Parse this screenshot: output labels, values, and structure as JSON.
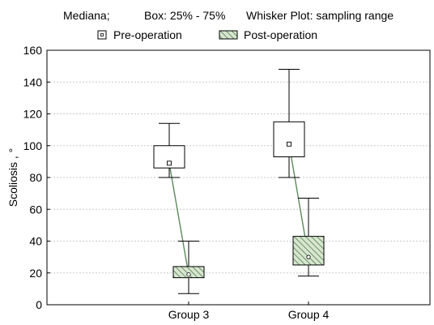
{
  "header": {
    "mediana_label": "Mediana;",
    "box_label": "Box: 25% - 75%",
    "whisker_label": "Whisker Plot: sampling range"
  },
  "chart_data": {
    "type": "boxplot",
    "ylabel": "Scoliosis , °",
    "ylim": [
      0,
      160
    ],
    "yticks": [
      0,
      20,
      40,
      60,
      80,
      100,
      120,
      140,
      160
    ],
    "grid": true,
    "legend_position": "top",
    "categories": [
      "Group 3",
      "Group 4"
    ],
    "series": [
      {
        "name": "Pre-operation",
        "fill": "#ffffff",
        "hatched": false,
        "boxes": [
          {
            "category": "Group 3",
            "min": 80,
            "q1": 86,
            "median": 89,
            "q3": 100,
            "max": 114
          },
          {
            "category": "Group 4",
            "min": 80,
            "q1": 93,
            "median": 101,
            "q3": 115,
            "max": 148
          }
        ]
      },
      {
        "name": "Post-operation",
        "fill": "#d8e6d0",
        "hatched": true,
        "boxes": [
          {
            "category": "Group 3",
            "min": 7,
            "q1": 17,
            "median": 19,
            "q3": 24,
            "max": 40
          },
          {
            "category": "Group 4",
            "min": 18,
            "q1": 25,
            "median": 30,
            "q3": 43,
            "max": 67
          }
        ]
      }
    ],
    "connector_color": "#5c8a5c",
    "hatch_color": "#4f7a4f",
    "line_color": "#000000",
    "grid_color": "#c9c9c9"
  }
}
